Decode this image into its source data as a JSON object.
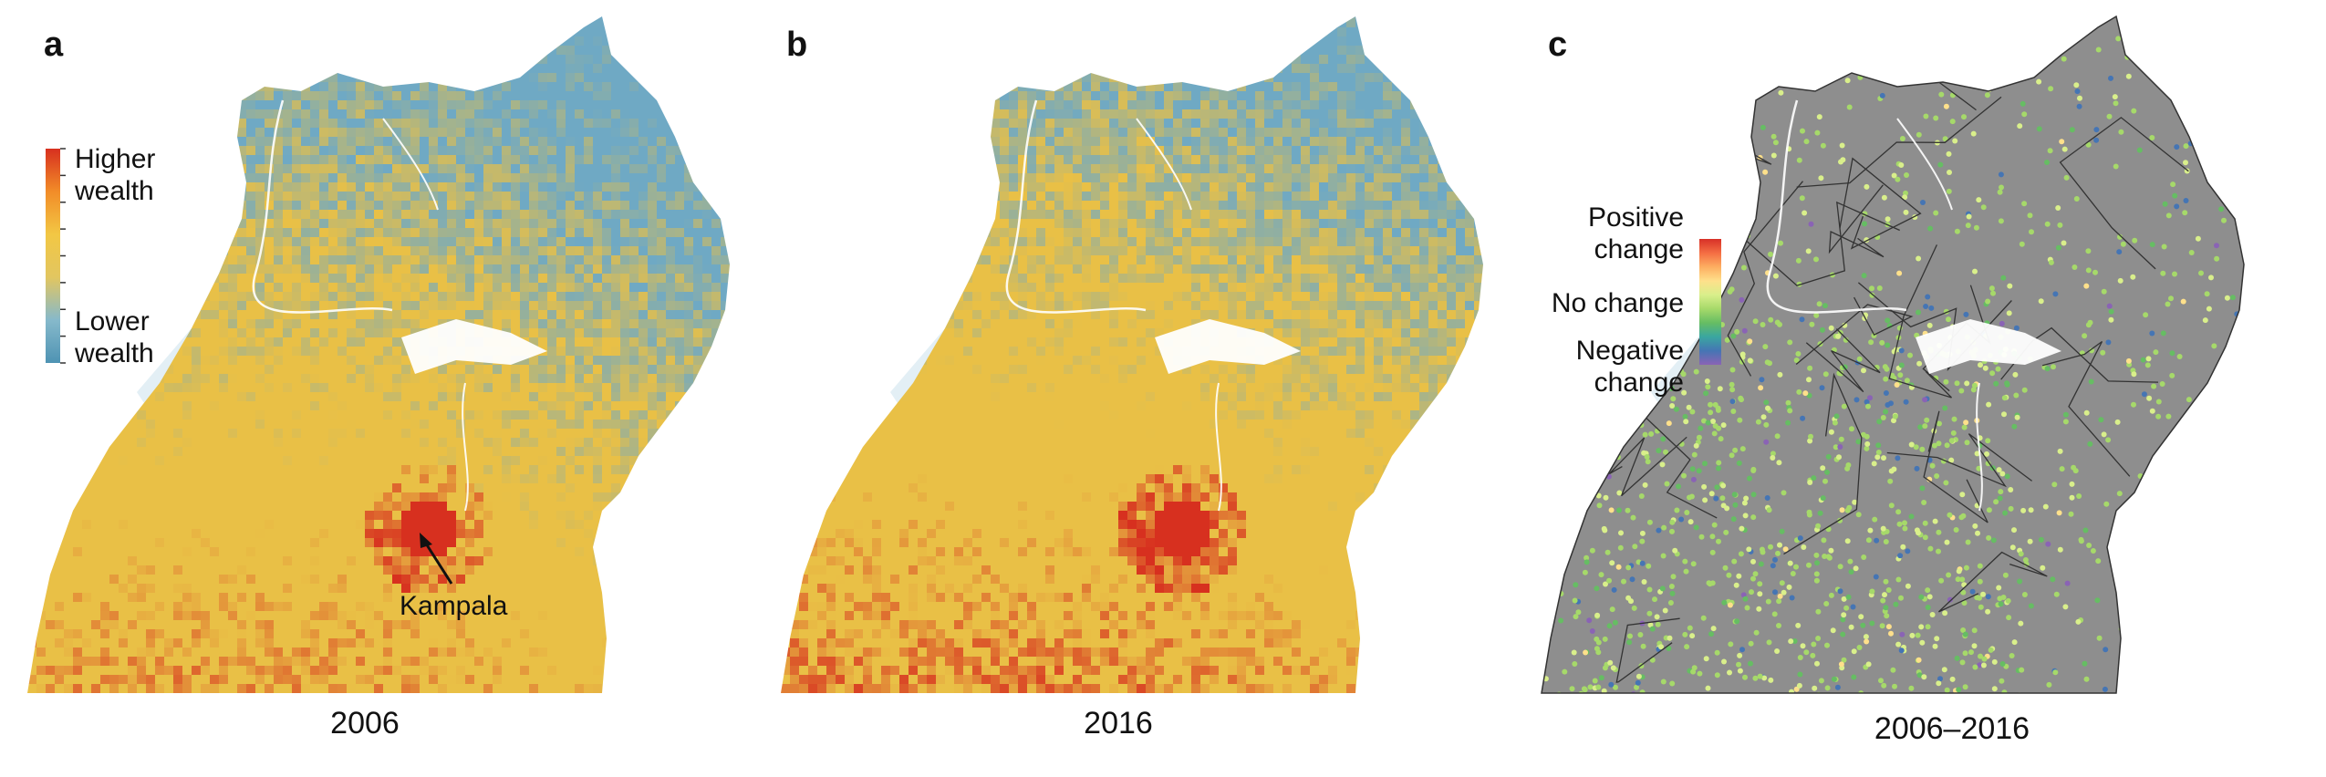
{
  "panels": [
    {
      "letter": "a",
      "year": "2006"
    },
    {
      "letter": "b",
      "year": "2016"
    },
    {
      "letter": "c",
      "year": "2006–2016"
    }
  ],
  "legend_wealth": {
    "high_line1": "Higher",
    "high_line2": "wealth",
    "low_line1": "Lower",
    "low_line2": "wealth",
    "colors": [
      "#d7301f",
      "#f28c28",
      "#f2c744",
      "#e2c660",
      "#86b9cb",
      "#4e93b3"
    ]
  },
  "legend_change": {
    "pos_line1": "Positive",
    "pos_line2": "change",
    "none": "No change",
    "neg_line1": "Negative",
    "neg_line2": "change",
    "colors": [
      "#d73027",
      "#f46d43",
      "#fdae61",
      "#fee08b",
      "#d9ef8b",
      "#a6d96a",
      "#66bd63",
      "#3aa6a0",
      "#4575b4",
      "#8a63b5"
    ]
  },
  "annotation": {
    "city": "Kampala"
  },
  "colors": {
    "water": "#e3eff5",
    "land_change": "#8e8e8e",
    "border": "#333333",
    "wealth_high": "#d7301f",
    "wealth_mid": "#e9c046",
    "wealth_low": "#6fa9c4"
  }
}
